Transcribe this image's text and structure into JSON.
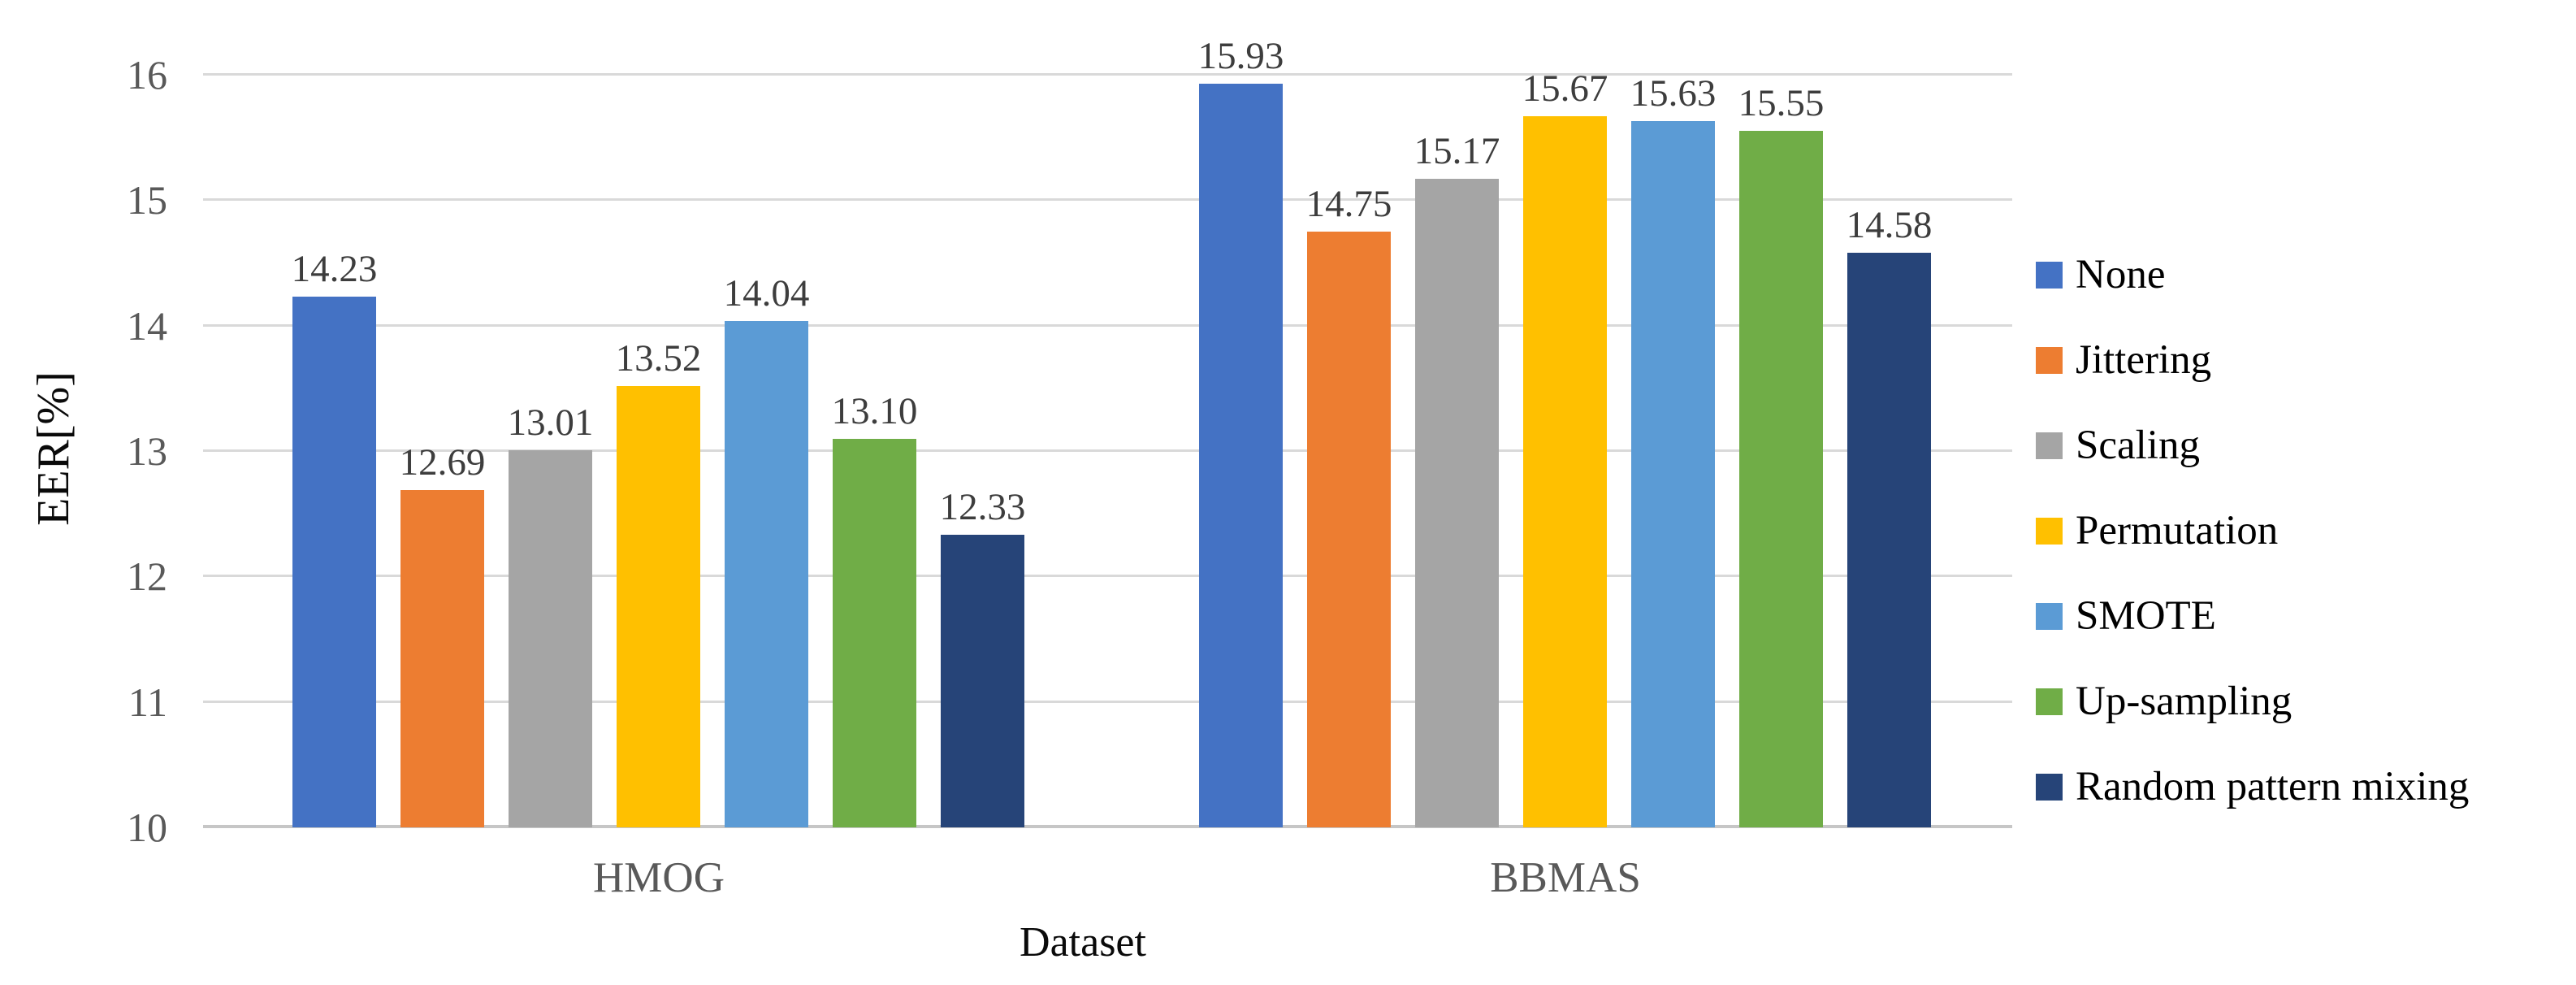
{
  "chart_data": {
    "type": "bar",
    "title": "",
    "xlabel": "Dataset",
    "ylabel": "EER[%]",
    "ylim": [
      10,
      16
    ],
    "yticks": [
      10,
      11,
      12,
      13,
      14,
      15,
      16
    ],
    "ytick_labels": [
      "10",
      "11",
      "12",
      "13",
      "14",
      "15",
      "16"
    ],
    "grid": true,
    "gridline_color": "#d9d9d9",
    "baseline_color": "#c6c6c6",
    "legend_position": "right",
    "categories": [
      "HMOG",
      "BBMAS"
    ],
    "series": [
      {
        "name": "None",
        "color": "#4472C4",
        "values": [
          14.23,
          15.93
        ],
        "labels": [
          "14.23",
          "15.93"
        ]
      },
      {
        "name": "Jittering",
        "color": "#ED7D31",
        "values": [
          12.69,
          14.75
        ],
        "labels": [
          "12.69",
          "14.75"
        ]
      },
      {
        "name": "Scaling",
        "color": "#A5A5A5",
        "values": [
          13.01,
          15.17
        ],
        "labels": [
          "13.01",
          "15.17"
        ]
      },
      {
        "name": "Permutation",
        "color": "#FFC000",
        "values": [
          13.52,
          15.67
        ],
        "labels": [
          "13.52",
          "15.67"
        ]
      },
      {
        "name": "SMOTE",
        "color": "#5B9BD5",
        "values": [
          14.04,
          15.63
        ],
        "labels": [
          "14.04",
          "15.63"
        ]
      },
      {
        "name": "Up-sampling",
        "color": "#70AD47",
        "values": [
          13.1,
          15.55
        ],
        "labels": [
          "13.10",
          "15.55"
        ]
      },
      {
        "name": "Random pattern mixing",
        "color": "#264478",
        "values": [
          12.33,
          14.58
        ],
        "labels": [
          "12.33",
          "14.58"
        ]
      }
    ]
  }
}
